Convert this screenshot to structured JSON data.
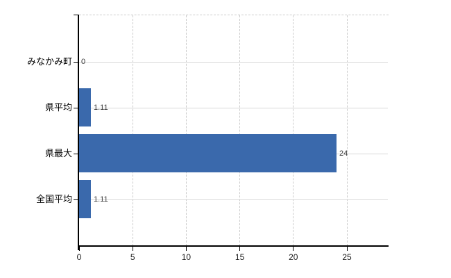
{
  "chart_data": {
    "type": "bar",
    "orientation": "horizontal",
    "title": "",
    "xlabel": "",
    "ylabel": "",
    "categories": [
      "みなかみ町",
      "県平均",
      "県最大",
      "全国平均"
    ],
    "values": [
      0,
      1.11,
      24,
      1.11
    ],
    "value_labels": [
      "0",
      "1.11",
      "24",
      "1.11"
    ],
    "x_ticks": [
      0,
      5,
      10,
      15,
      20,
      25
    ],
    "xlim": [
      0,
      28.8
    ],
    "grid": true,
    "legend": "none",
    "colors": {
      "bar": "#3a69ac",
      "axis": "#000000",
      "vertical_grid": "#cccccc",
      "horizontal_grid": "#d9d9d9",
      "tick_text": "#1a1a1a",
      "category_text": "#000000",
      "value_text": "#3c3c3c",
      "background": "#ffffff"
    }
  }
}
